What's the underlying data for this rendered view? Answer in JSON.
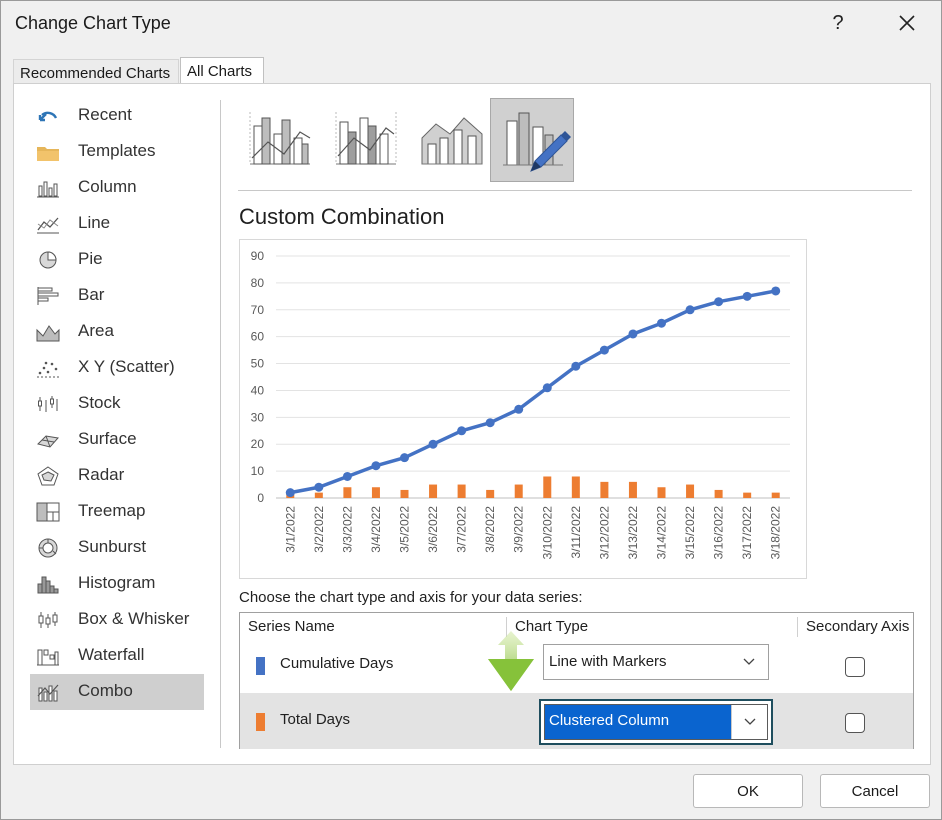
{
  "window": {
    "title": "Change Chart Type",
    "help_label": "?",
    "close_label": "✕"
  },
  "tabs": [
    {
      "label": "Recommended Charts"
    },
    {
      "label": "All Charts"
    }
  ],
  "sidebar": {
    "items": [
      {
        "label": "Recent",
        "icon": "recent-icon"
      },
      {
        "label": "Templates",
        "icon": "folder-icon"
      },
      {
        "label": "Column",
        "icon": "column-chart-icon"
      },
      {
        "label": "Line",
        "icon": "line-chart-icon"
      },
      {
        "label": "Pie",
        "icon": "pie-chart-icon"
      },
      {
        "label": "Bar",
        "icon": "bar-chart-icon"
      },
      {
        "label": "Area",
        "icon": "area-chart-icon"
      },
      {
        "label": "X Y (Scatter)",
        "icon": "scatter-chart-icon"
      },
      {
        "label": "Stock",
        "icon": "stock-chart-icon"
      },
      {
        "label": "Surface",
        "icon": "surface-chart-icon"
      },
      {
        "label": "Radar",
        "icon": "radar-chart-icon"
      },
      {
        "label": "Treemap",
        "icon": "treemap-chart-icon"
      },
      {
        "label": "Sunburst",
        "icon": "sunburst-chart-icon"
      },
      {
        "label": "Histogram",
        "icon": "histogram-chart-icon"
      },
      {
        "label": "Box & Whisker",
        "icon": "box-whisker-chart-icon"
      },
      {
        "label": "Waterfall",
        "icon": "waterfall-chart-icon"
      },
      {
        "label": "Combo",
        "icon": "combo-chart-icon",
        "selected": true
      }
    ]
  },
  "subtypes": {
    "selected_index": 3,
    "items": [
      {
        "icon": "clustered-column-line-icon"
      },
      {
        "icon": "clustered-column-line-secondary-axis-icon"
      },
      {
        "icon": "stacked-area-clustered-column-icon"
      },
      {
        "icon": "custom-combination-icon"
      }
    ]
  },
  "section_title": "Custom Combination",
  "colors": {
    "line_series": "#4472c4",
    "column_series": "#ed7d31",
    "selection": "#0a64cf",
    "arrow": "#8dc63f"
  },
  "chart_data": {
    "type": "combo",
    "categories": [
      "3/1/2022",
      "3/2/2022",
      "3/3/2022",
      "3/4/2022",
      "3/5/2022",
      "3/6/2022",
      "3/7/2022",
      "3/8/2022",
      "3/9/2022",
      "3/10/2022",
      "3/11/2022",
      "3/12/2022",
      "3/13/2022",
      "3/14/2022",
      "3/15/2022",
      "3/16/2022",
      "3/17/2022",
      "3/18/2022"
    ],
    "series": [
      {
        "name": "Cumulative Days",
        "type": "line",
        "values": [
          2,
          4,
          8,
          12,
          15,
          20,
          25,
          28,
          33,
          41,
          49,
          55,
          61,
          65,
          70,
          73,
          75,
          77
        ]
      },
      {
        "name": "Total Days",
        "type": "bar",
        "values": [
          2,
          2,
          4,
          4,
          3,
          5,
          5,
          3,
          5,
          8,
          8,
          6,
          6,
          4,
          5,
          3,
          2,
          2
        ]
      }
    ],
    "ylim": [
      0,
      90
    ],
    "yticks": [
      0,
      10,
      20,
      30,
      40,
      50,
      60,
      70,
      80,
      90
    ],
    "grid": true,
    "legend": "none"
  },
  "series_table": {
    "caption": "Choose the chart type and axis for your data series:",
    "headers": {
      "name": "Series Name",
      "type": "Chart Type",
      "secondary": "Secondary Axis"
    },
    "rows": [
      {
        "name": "Cumulative Days",
        "chart_type": "Line with Markers",
        "secondary_axis": false,
        "color": "#4472c4"
      },
      {
        "name": "Total Days",
        "chart_type": "Clustered Column",
        "secondary_axis": false,
        "color": "#ed7d31"
      }
    ]
  },
  "footer": {
    "ok_label": "OK",
    "cancel_label": "Cancel"
  }
}
